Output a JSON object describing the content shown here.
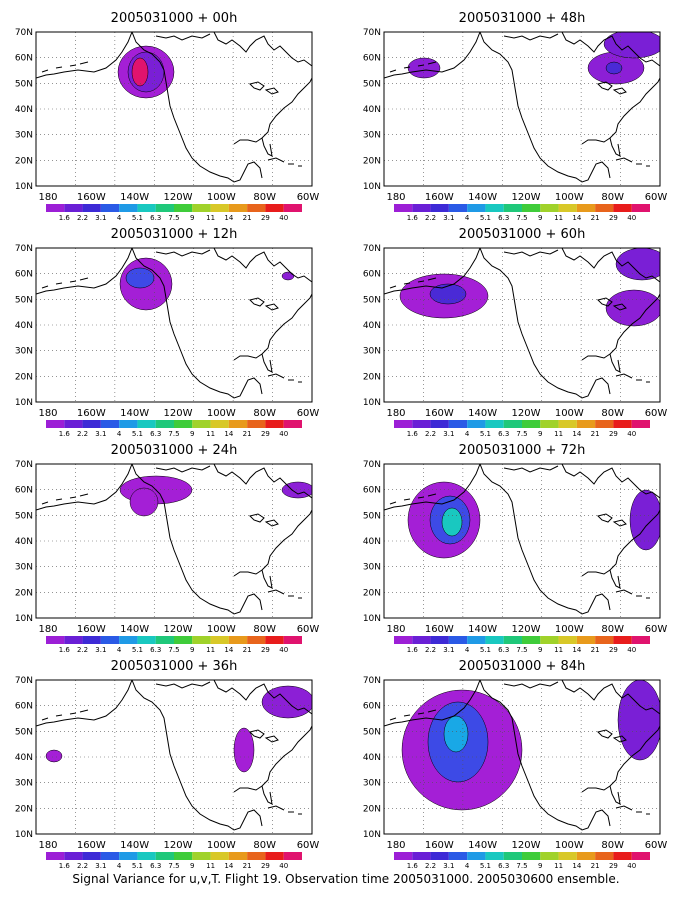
{
  "caption": "Signal Variance for u,v,T. Flight 19. Observation time 2005031000. 2005030600 ensemble.",
  "lat_labels": [
    "70N",
    "60N",
    "50N",
    "40N",
    "30N",
    "20N",
    "10N"
  ],
  "lon_labels": [
    "180",
    "160W",
    "140W",
    "120W",
    "100W",
    "80W",
    "60W"
  ],
  "color_scale": {
    "labels": [
      "1.6",
      "2.2",
      "3.1",
      "4",
      "5.1",
      "6.3",
      "7.5",
      "9",
      "11",
      "14",
      "21",
      "29",
      "40"
    ],
    "colors": [
      "#9c1fd6",
      "#6a1fd6",
      "#3d2ad6",
      "#2a5ae6",
      "#1f9ae6",
      "#19c8c0",
      "#1fc87a",
      "#3fcc3a",
      "#a0d22a",
      "#d8c828",
      "#e89a1c",
      "#e8641c",
      "#e81c1c",
      "#e0136e"
    ]
  },
  "panels": [
    {
      "title": "2005031000 + 00h"
    },
    {
      "title": "2005031000 + 48h"
    },
    {
      "title": "2005031000 + 12h"
    },
    {
      "title": "2005031000 + 60h"
    },
    {
      "title": "2005031000 + 24h"
    },
    {
      "title": "2005031000 + 72h"
    },
    {
      "title": "2005031000 + 36h"
    },
    {
      "title": "2005031000 + 84h"
    }
  ]
}
